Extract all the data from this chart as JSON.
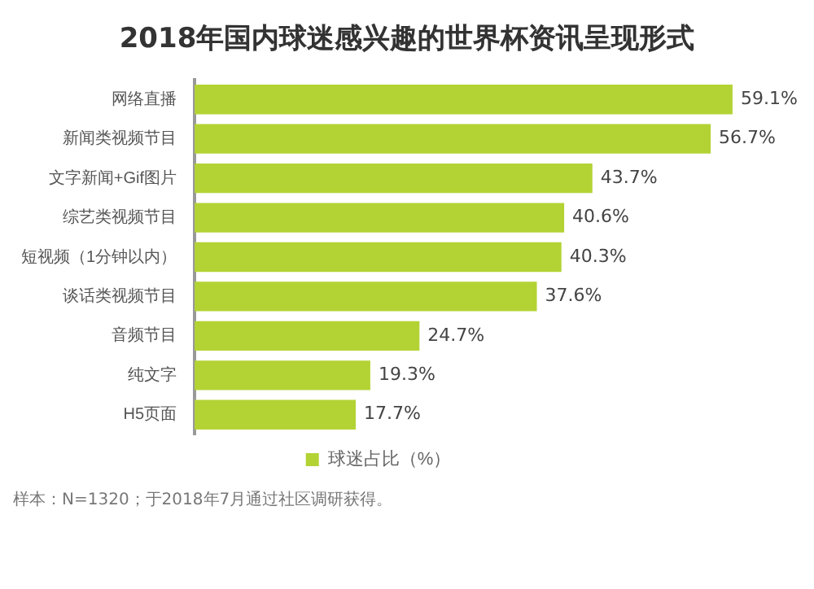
{
  "chart_data": {
    "type": "bar",
    "orientation": "horizontal",
    "title": "2018年国内球迷感兴趣的世界杯资讯呈现形式",
    "categories": [
      "网络直播",
      "新闻类视频节目",
      "文字新闻+Gif图片",
      "综艺类视频节目",
      "短视频（1分钟以内）",
      "谈话类视频节目",
      "音频节目",
      "纯文字",
      "H5页面"
    ],
    "series": [
      {
        "name": "球迷占比（%）",
        "color": "#b3d334",
        "values": [
          59.1,
          56.7,
          43.7,
          40.6,
          40.3,
          37.6,
          24.7,
          19.3,
          17.7
        ],
        "value_labels": [
          "59.1%",
          "56.7%",
          "43.7%",
          "40.6%",
          "40.3%",
          "37.6%",
          "24.7%",
          "19.3%",
          "17.7%"
        ]
      }
    ],
    "legend": "bottom",
    "annotations": [
      "样本：N=1320；于2018年7月通过社区调研获得。"
    ]
  }
}
